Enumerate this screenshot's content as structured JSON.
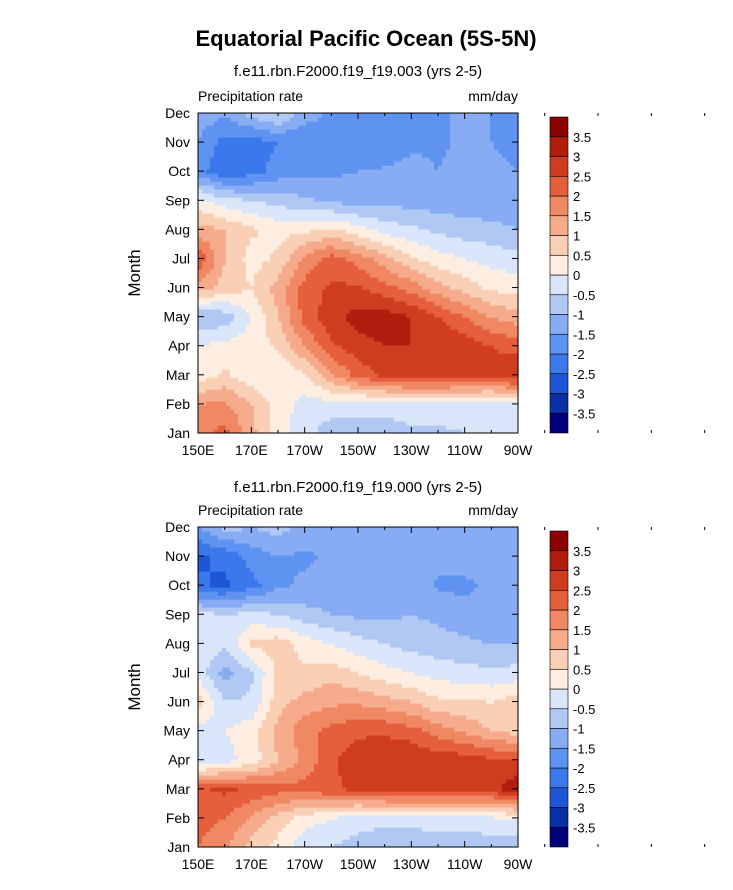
{
  "figure": {
    "title": "Equatorial Pacific Ocean (5S-5N)"
  },
  "chart_data": [
    {
      "type": "heatmap",
      "title": "f.e11.rbn.F2000.f19_f19.003 (yrs 2-5)",
      "left_label": "Precipitation rate",
      "right_label": "mm/day",
      "ylabel": "Month",
      "xlabel": "",
      "x_ticks": [
        "150E",
        "170E",
        "170W",
        "150W",
        "130W",
        "110W",
        "90W"
      ],
      "y_ticks": [
        "Jan",
        "Feb",
        "Mar",
        "Apr",
        "May",
        "Jun",
        "Jul",
        "Aug",
        "Sep",
        "Oct",
        "Nov",
        "Dec"
      ],
      "x": [
        150,
        160,
        170,
        180,
        190,
        200,
        210,
        220,
        230,
        240,
        250,
        260,
        270
      ],
      "y": [
        1,
        2,
        3,
        4,
        5,
        6,
        7,
        8,
        9,
        10,
        11,
        12
      ],
      "z": [
        [
          1.8,
          2.2,
          1.2,
          0.2,
          -0.3,
          -0.8,
          -0.8,
          -0.8,
          -0.6,
          -0.6,
          -0.5,
          -0.3,
          -0.5
        ],
        [
          1.5,
          1.6,
          1.0,
          0.3,
          -0.2,
          -0.2,
          -0.3,
          -0.3,
          -0.2,
          -0.2,
          -0.3,
          -0.3,
          -0.3
        ],
        [
          0.2,
          0.6,
          0.2,
          0.0,
          0.4,
          1.4,
          2.2,
          2.6,
          2.8,
          2.8,
          2.7,
          2.6,
          3.0
        ],
        [
          0.0,
          0.2,
          0.2,
          0.6,
          1.5,
          2.4,
          2.8,
          3.0,
          3.0,
          3.0,
          2.8,
          2.5,
          2.3
        ],
        [
          -1.0,
          -0.8,
          0.0,
          1.0,
          2.2,
          2.8,
          3.2,
          3.3,
          3.0,
          2.5,
          2.0,
          1.5,
          1.2
        ],
        [
          1.2,
          0.8,
          0.5,
          1.2,
          2.2,
          2.6,
          2.6,
          2.2,
          1.8,
          1.2,
          0.8,
          0.4,
          0.3
        ],
        [
          2.5,
          1.0,
          0.3,
          0.6,
          1.6,
          2.2,
          1.8,
          1.2,
          0.6,
          0.2,
          0.0,
          -0.2,
          -0.3
        ],
        [
          1.2,
          1.0,
          0.6,
          0.3,
          0.4,
          0.6,
          0.2,
          -0.2,
          -0.4,
          -0.6,
          -0.8,
          -0.8,
          -1.0
        ],
        [
          0.2,
          -0.3,
          -0.5,
          -0.7,
          -0.9,
          -1.1,
          -1.2,
          -1.2,
          -1.2,
          -1.3,
          -1.3,
          -1.4,
          -1.5
        ],
        [
          -1.8,
          -2.4,
          -2.2,
          -1.8,
          -1.6,
          -1.6,
          -1.5,
          -1.4,
          -1.3,
          -1.5,
          -1.3,
          -1.4,
          -1.5
        ],
        [
          -1.5,
          -2.2,
          -2.3,
          -2.0,
          -2.0,
          -2.0,
          -2.0,
          -2.0,
          -1.6,
          -1.6,
          -1.4,
          -1.5,
          -1.6
        ],
        [
          -1.2,
          -1.4,
          -0.8,
          -0.4,
          -1.2,
          -1.6,
          -1.7,
          -1.8,
          -1.5,
          -1.5,
          -1.5,
          -1.5,
          -1.6
        ]
      ],
      "colorbar": {
        "levels": [
          "-3.5",
          "-3",
          "-2.5",
          "-2",
          "-1.5",
          "-1",
          "-0.5",
          "0",
          "0.5",
          "1",
          "1.5",
          "2",
          "2.5",
          "3",
          "3.5"
        ]
      }
    },
    {
      "type": "heatmap",
      "title": "f.e11.rbn.F2000.f19_f19.000 (yrs 2-5)",
      "left_label": "Precipitation rate",
      "right_label": "mm/day",
      "ylabel": "Month",
      "xlabel": "",
      "x_ticks": [
        "150E",
        "170E",
        "170W",
        "150W",
        "130W",
        "110W",
        "90W"
      ],
      "y_ticks": [
        "Jan",
        "Feb",
        "Mar",
        "Apr",
        "May",
        "Jun",
        "Jul",
        "Aug",
        "Sep",
        "Oct",
        "Nov",
        "Dec"
      ],
      "x": [
        150,
        160,
        170,
        180,
        190,
        200,
        210,
        220,
        230,
        240,
        250,
        260,
        270
      ],
      "y": [
        1,
        2,
        3,
        4,
        5,
        6,
        7,
        8,
        9,
        10,
        11,
        12
      ],
      "z": [
        [
          2.0,
          1.6,
          0.8,
          0.3,
          -0.3,
          -0.5,
          -0.7,
          -0.9,
          -0.9,
          -0.9,
          -0.9,
          -0.8,
          -0.9
        ],
        [
          2.2,
          2.0,
          1.4,
          0.8,
          0.2,
          0.0,
          -0.3,
          -0.3,
          -0.3,
          -0.2,
          -0.2,
          -0.1,
          0.0
        ],
        [
          2.4,
          2.6,
          2.4,
          2.2,
          2.2,
          2.4,
          2.6,
          2.8,
          2.8,
          2.8,
          2.8,
          2.8,
          3.4
        ],
        [
          -0.5,
          -0.2,
          0.2,
          1.0,
          1.6,
          2.4,
          2.8,
          3.0,
          3.0,
          2.8,
          2.8,
          2.6,
          2.6
        ],
        [
          -0.3,
          0.0,
          0.3,
          1.2,
          1.8,
          2.2,
          2.4,
          2.4,
          2.2,
          1.8,
          1.4,
          1.0,
          0.8
        ],
        [
          0.8,
          -0.5,
          -0.4,
          0.8,
          1.2,
          1.4,
          1.4,
          1.2,
          1.0,
          0.6,
          0.6,
          0.5,
          0.8
        ],
        [
          -0.2,
          -1.2,
          -0.6,
          0.6,
          0.6,
          0.8,
          0.5,
          0.2,
          0.0,
          -0.2,
          -0.3,
          -0.4,
          -0.3
        ],
        [
          0.0,
          -0.4,
          0.6,
          0.8,
          0.3,
          0.0,
          -0.3,
          -0.5,
          -0.7,
          -0.8,
          -0.9,
          -1.0,
          -1.0
        ],
        [
          -0.3,
          -0.5,
          -0.3,
          -0.5,
          -0.8,
          -1.0,
          -1.1,
          -1.1,
          -1.0,
          -1.1,
          -1.3,
          -1.4,
          -1.5
        ],
        [
          -2.4,
          -2.6,
          -2.2,
          -1.6,
          -1.4,
          -1.2,
          -1.1,
          -1.1,
          -1.0,
          -1.6,
          -1.6,
          -1.4,
          -1.3
        ],
        [
          -2.6,
          -2.4,
          -1.8,
          -1.5,
          -1.6,
          -1.4,
          -1.5,
          -1.4,
          -1.2,
          -1.3,
          -1.3,
          -1.3,
          -1.3
        ],
        [
          -1.6,
          -0.8,
          -1.0,
          -0.8,
          -1.2,
          -1.4,
          -1.4,
          -1.4,
          -1.3,
          -1.3,
          -1.3,
          -1.3,
          -1.3
        ]
      ],
      "colorbar": {
        "levels": [
          "-3.5",
          "-3",
          "-2.5",
          "-2",
          "-1.5",
          "-1",
          "-0.5",
          "0",
          "0.5",
          "1",
          "1.5",
          "2",
          "2.5",
          "3",
          "3.5"
        ]
      }
    }
  ],
  "palette": [
    "#00007a",
    "#0a2fa6",
    "#1f56d8",
    "#3a78eb",
    "#5f93f1",
    "#87acf3",
    "#b1c8f4",
    "#d9e5f8",
    "#fdeee1",
    "#f9cfb5",
    "#f6ab8c",
    "#f08864",
    "#e55f3d",
    "#d03c1f",
    "#b21d0e",
    "#8c0000"
  ]
}
